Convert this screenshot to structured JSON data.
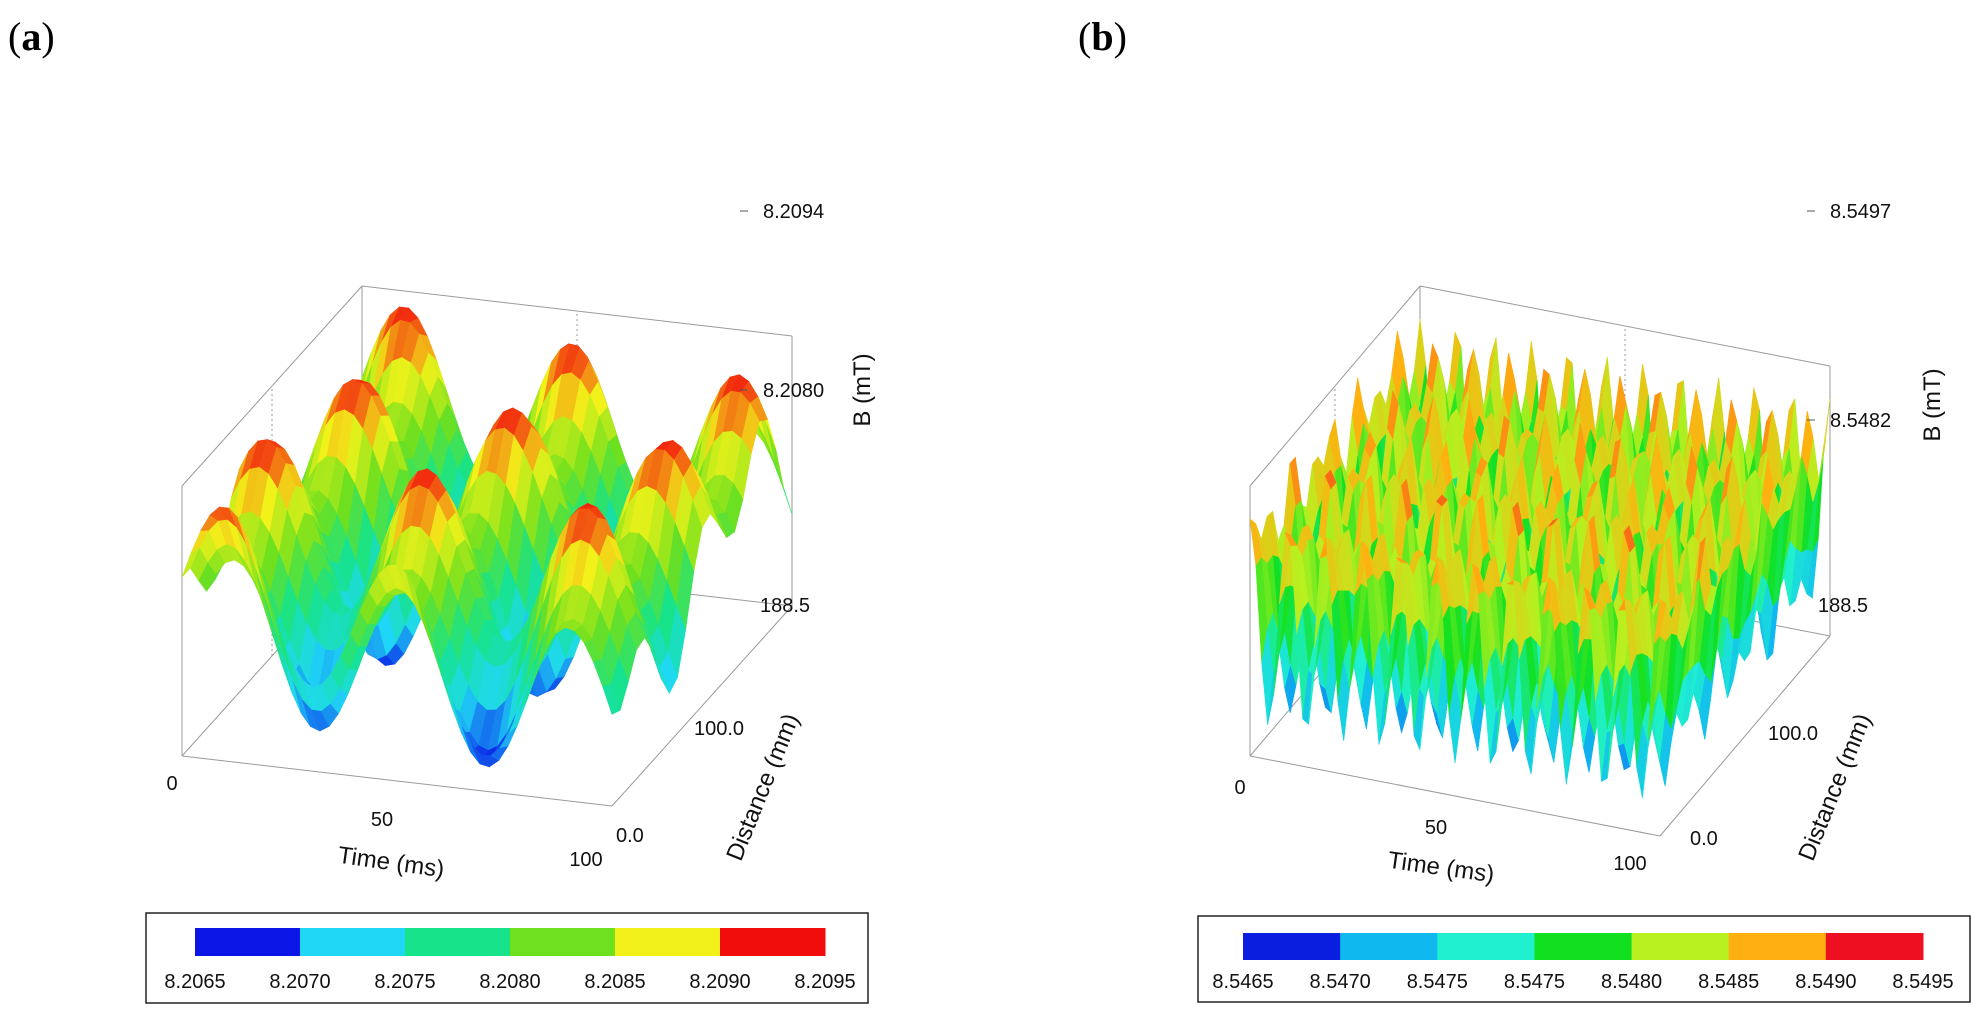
{
  "chart_data": [
    {
      "panel": "a",
      "type": "surface3d",
      "x": {
        "label": "Time (ms)",
        "ticks": [
          "0",
          "50",
          "100"
        ],
        "range": [
          0,
          100
        ]
      },
      "y": {
        "label": "Distance (mm)",
        "ticks": [
          "188.5",
          "100.0",
          "0.0"
        ],
        "range": [
          0,
          188.5
        ]
      },
      "z": {
        "label": "B (mT)",
        "ticks": [
          "8.2094",
          "8.2080"
        ],
        "range": [
          8.2065,
          8.2095
        ]
      },
      "surface": {
        "time_periods": 2.5,
        "distance_periods": 3
      },
      "colorbar": {
        "labels": [
          "8.2065",
          "8.2070",
          "8.2075",
          "8.2080",
          "8.2085",
          "8.2090",
          "8.2095"
        ],
        "colors": [
          "#0a16e6",
          "#20d8f6",
          "#16e38a",
          "#6fe01e",
          "#f2f21a",
          "#f20d0d"
        ]
      }
    },
    {
      "panel": "b",
      "type": "surface3d",
      "x": {
        "label": "Time (ms)",
        "ticks": [
          "0",
          "50",
          "100"
        ],
        "range": [
          0,
          100
        ]
      },
      "y": {
        "label": "Distance (mm)",
        "ticks": [
          "188.5",
          "100.0",
          "0.0"
        ],
        "range": [
          0,
          188.5
        ]
      },
      "z": {
        "label": "B (mT)",
        "ticks": [
          "8.5497",
          "8.5482"
        ],
        "range": [
          8.5465,
          8.5497
        ]
      },
      "surface": {
        "time_periods": 11,
        "distance_periods": 8
      },
      "colorbar": {
        "labels": [
          "8.5465",
          "8.5470",
          "8.5475",
          "8.5475",
          "8.5480",
          "8.5485",
          "8.5490",
          "8.5495"
        ],
        "colors": [
          "#0a1ee0",
          "#10b8f0",
          "#20f0d0",
          "#10e020",
          "#b8f020",
          "#ffb010",
          "#ee1020"
        ]
      }
    }
  ]
}
